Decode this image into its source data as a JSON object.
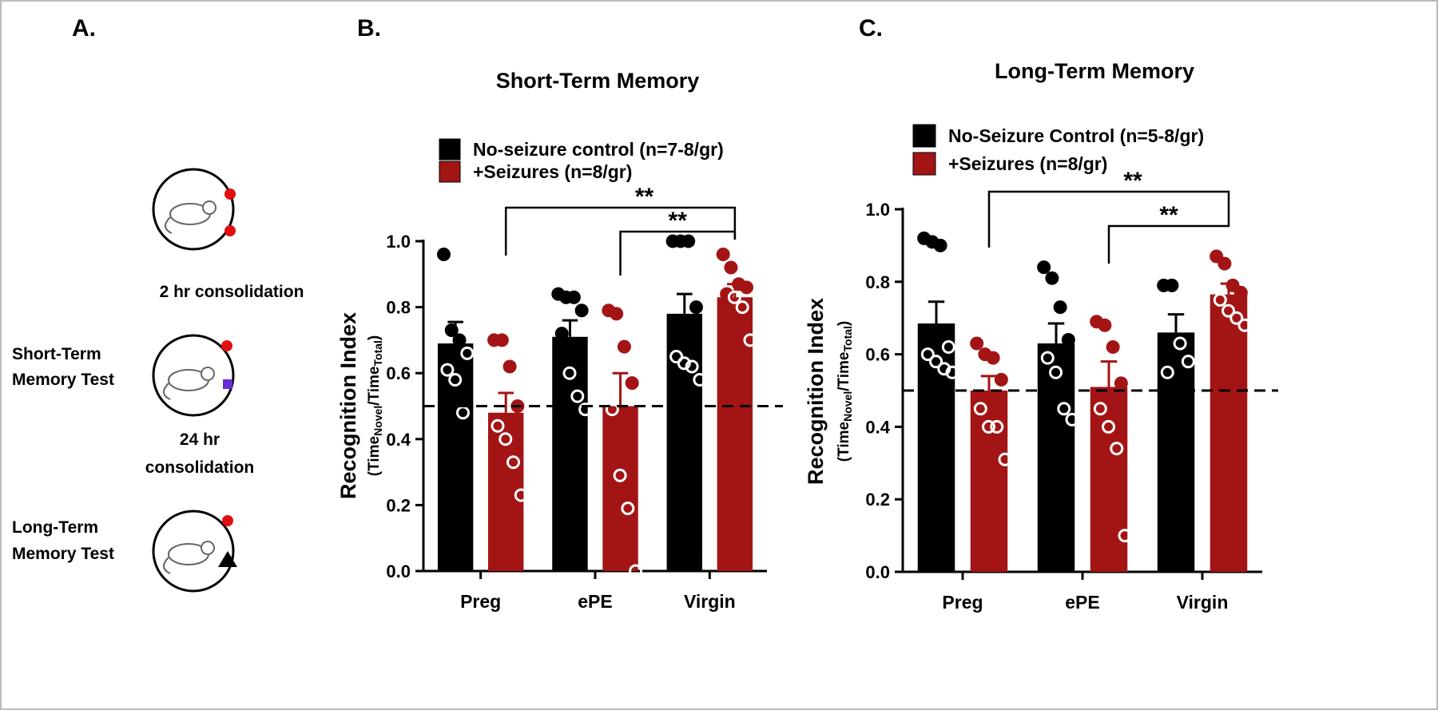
{
  "diagram": {
    "panel": "A.",
    "step1": "2 hr consolidation",
    "test1": [
      "Short-Term",
      "Memory Test"
    ],
    "step2": [
      "24 hr",
      "consolidation"
    ],
    "test2": [
      "Long-Term",
      "Memory Test"
    ]
  },
  "chart_data": [
    {
      "type": "bar",
      "panel": "B.",
      "title": "Short-Term Memory",
      "ylabel": "Recognition Index",
      "ylabel_sub": [
        "(Time",
        "Novel",
        "/Time",
        "Total",
        ")"
      ],
      "categories": [
        "Preg",
        "ePE",
        "Virgin"
      ],
      "series": [
        {
          "name": "No-seizure control (n=7-8/gr)",
          "color": "#000000",
          "values": [
            0.69,
            0.71,
            0.78
          ],
          "errors": [
            0.065,
            0.05,
            0.06
          ],
          "points": [
            [
              0.96,
              0.73,
              0.7,
              0.66,
              0.61,
              0.58,
              0.48
            ],
            [
              0.84,
              0.83,
              0.83,
              0.79,
              0.72,
              0.6,
              0.53,
              0.49
            ],
            [
              1.0,
              1.0,
              1.0,
              0.8,
              0.65,
              0.63,
              0.62,
              0.58
            ]
          ]
        },
        {
          "name": "+Seizures (n=8/gr)",
          "color": "#a31515",
          "values": [
            0.48,
            0.5,
            0.83
          ],
          "errors": [
            0.06,
            0.1,
            0.04
          ],
          "points": [
            [
              0.7,
              0.7,
              0.62,
              0.5,
              0.44,
              0.4,
              0.33,
              0.23
            ],
            [
              0.79,
              0.78,
              0.68,
              0.57,
              0.49,
              0.29,
              0.19,
              0.0
            ],
            [
              0.96,
              0.92,
              0.87,
              0.86,
              0.84,
              0.83,
              0.8,
              0.7
            ]
          ]
        }
      ],
      "reference_line": 0.5,
      "annotations": [
        "**",
        "**"
      ],
      "ylim": [
        0,
        1.0
      ],
      "yticks": [
        {
          "value": 0,
          "label": "0.0"
        },
        0.2,
        0.4,
        0.6,
        0.8,
        {
          "value": 1.0,
          "label": "1.0"
        }
      ]
    },
    {
      "type": "bar",
      "panel": "C.",
      "title": "Long-Term Memory",
      "ylabel": "Recognition Index",
      "ylabel_sub": [
        "(Time",
        "Novel",
        "/Time",
        "Total",
        ")"
      ],
      "categories": [
        "Preg",
        "ePE",
        "Virgin"
      ],
      "series": [
        {
          "name": "No-Seizure Control (n=5-8/gr)",
          "color": "#000000",
          "values": [
            0.685,
            0.63,
            0.66
          ],
          "errors": [
            0.06,
            0.055,
            0.05
          ],
          "points": [
            [
              0.92,
              0.91,
              0.9,
              0.62,
              0.6,
              0.58,
              0.56,
              0.55
            ],
            [
              0.84,
              0.81,
              0.73,
              0.64,
              0.59,
              0.55,
              0.45,
              0.42
            ],
            [
              0.79,
              0.79,
              0.63,
              0.58,
              0.55
            ]
          ]
        },
        {
          "name": "+Seizures (n=8/gr)",
          "color": "#a31515",
          "values": [
            0.5,
            0.51,
            0.765
          ],
          "errors": [
            0.04,
            0.07,
            0.03
          ],
          "points": [
            [
              0.63,
              0.6,
              0.59,
              0.53,
              0.45,
              0.4,
              0.4,
              0.31
            ],
            [
              0.69,
              0.68,
              0.62,
              0.52,
              0.45,
              0.4,
              0.34,
              0.1
            ],
            [
              0.87,
              0.85,
              0.79,
              0.77,
              0.75,
              0.72,
              0.7,
              0.68
            ]
          ]
        }
      ],
      "reference_line": 0.5,
      "annotations": [
        "**",
        "**"
      ],
      "ylim": [
        0,
        1.0
      ],
      "yticks": [
        {
          "value": 0,
          "label": "0.0"
        },
        0.2,
        0.4,
        0.6,
        0.8,
        {
          "value": 1.0,
          "label": "1.0"
        }
      ]
    }
  ]
}
